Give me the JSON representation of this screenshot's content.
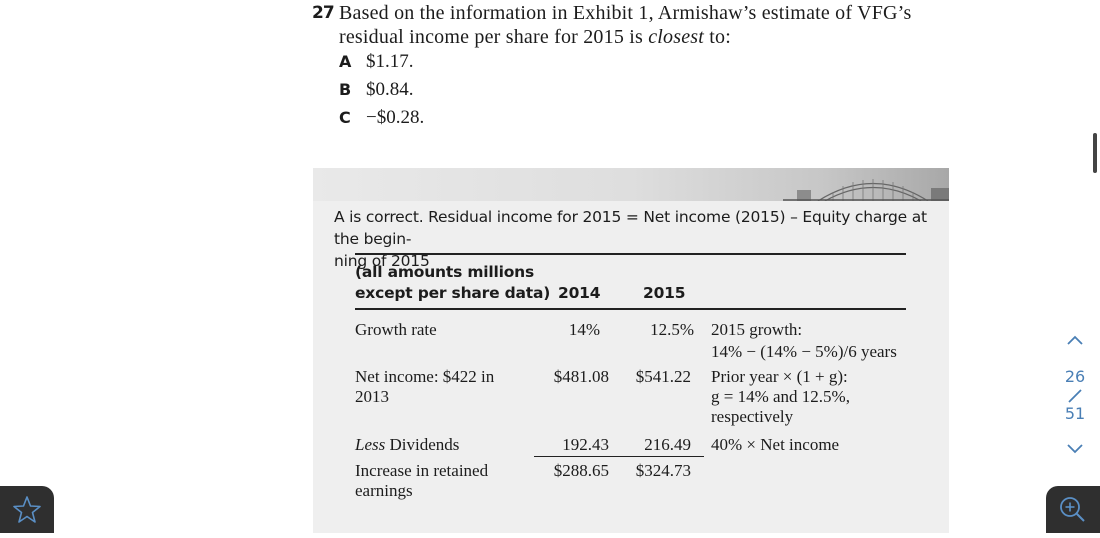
{
  "question": {
    "number": "27",
    "text_before": "Based on the information in Exhibit 1, Armishaw’s estimate of VFG’s residual income per share for 2015 is ",
    "text_emph": "closest",
    "text_after": " to:",
    "options": [
      {
        "letter": "A",
        "text": "$1.17."
      },
      {
        "letter": "B",
        "text": "$0.84."
      },
      {
        "letter": "C",
        "text": "−$0.28."
      }
    ]
  },
  "answer": {
    "explanation": "A is correct. Residual income for 2015 = Net income (2015) – Equity charge at the begin-ning of 2015",
    "explanation_line1": "A is correct. Residual income for 2015 = Net income (2015) – Equity charge at the begin-",
    "explanation_line2": "ning of 2015",
    "table": {
      "header_line1": "(all amounts millions",
      "header_line2": "except per share data)",
      "col_2014": "2014",
      "col_2015": "2015",
      "rows": [
        {
          "label": "Growth rate",
          "v2014": "14%",
          "v2015": "12.5%",
          "note1": "2015 growth:",
          "note2": "14% − (14% − 5%)/6 years"
        },
        {
          "label1": "Net income: $422 in",
          "label2": "2013",
          "v2014": "$481.08",
          "v2015": "$541.22",
          "note1": "Prior year × (1 + g):",
          "note2": "g = 14% and 12.5%,",
          "note3": "respectively"
        },
        {
          "label_emph": "Less",
          "label_rest": " Dividends",
          "v2014": "192.43",
          "v2015": "216.49",
          "note1": "40% × Net income"
        },
        {
          "label1": "Increase in retained",
          "label2": "earnings",
          "v2014": "$288.65",
          "v2015": "$324.73"
        }
      ]
    }
  },
  "pager": {
    "current": "26",
    "total": "51"
  },
  "icons": {
    "up": "chevron-up-icon",
    "down": "chevron-down-icon",
    "bookmark": "star-icon",
    "zoom": "zoom-in-icon"
  },
  "colors": {
    "accent": "#4a7fb5",
    "corner_button": "#2f2f2f",
    "answer_background": "#efefef"
  }
}
